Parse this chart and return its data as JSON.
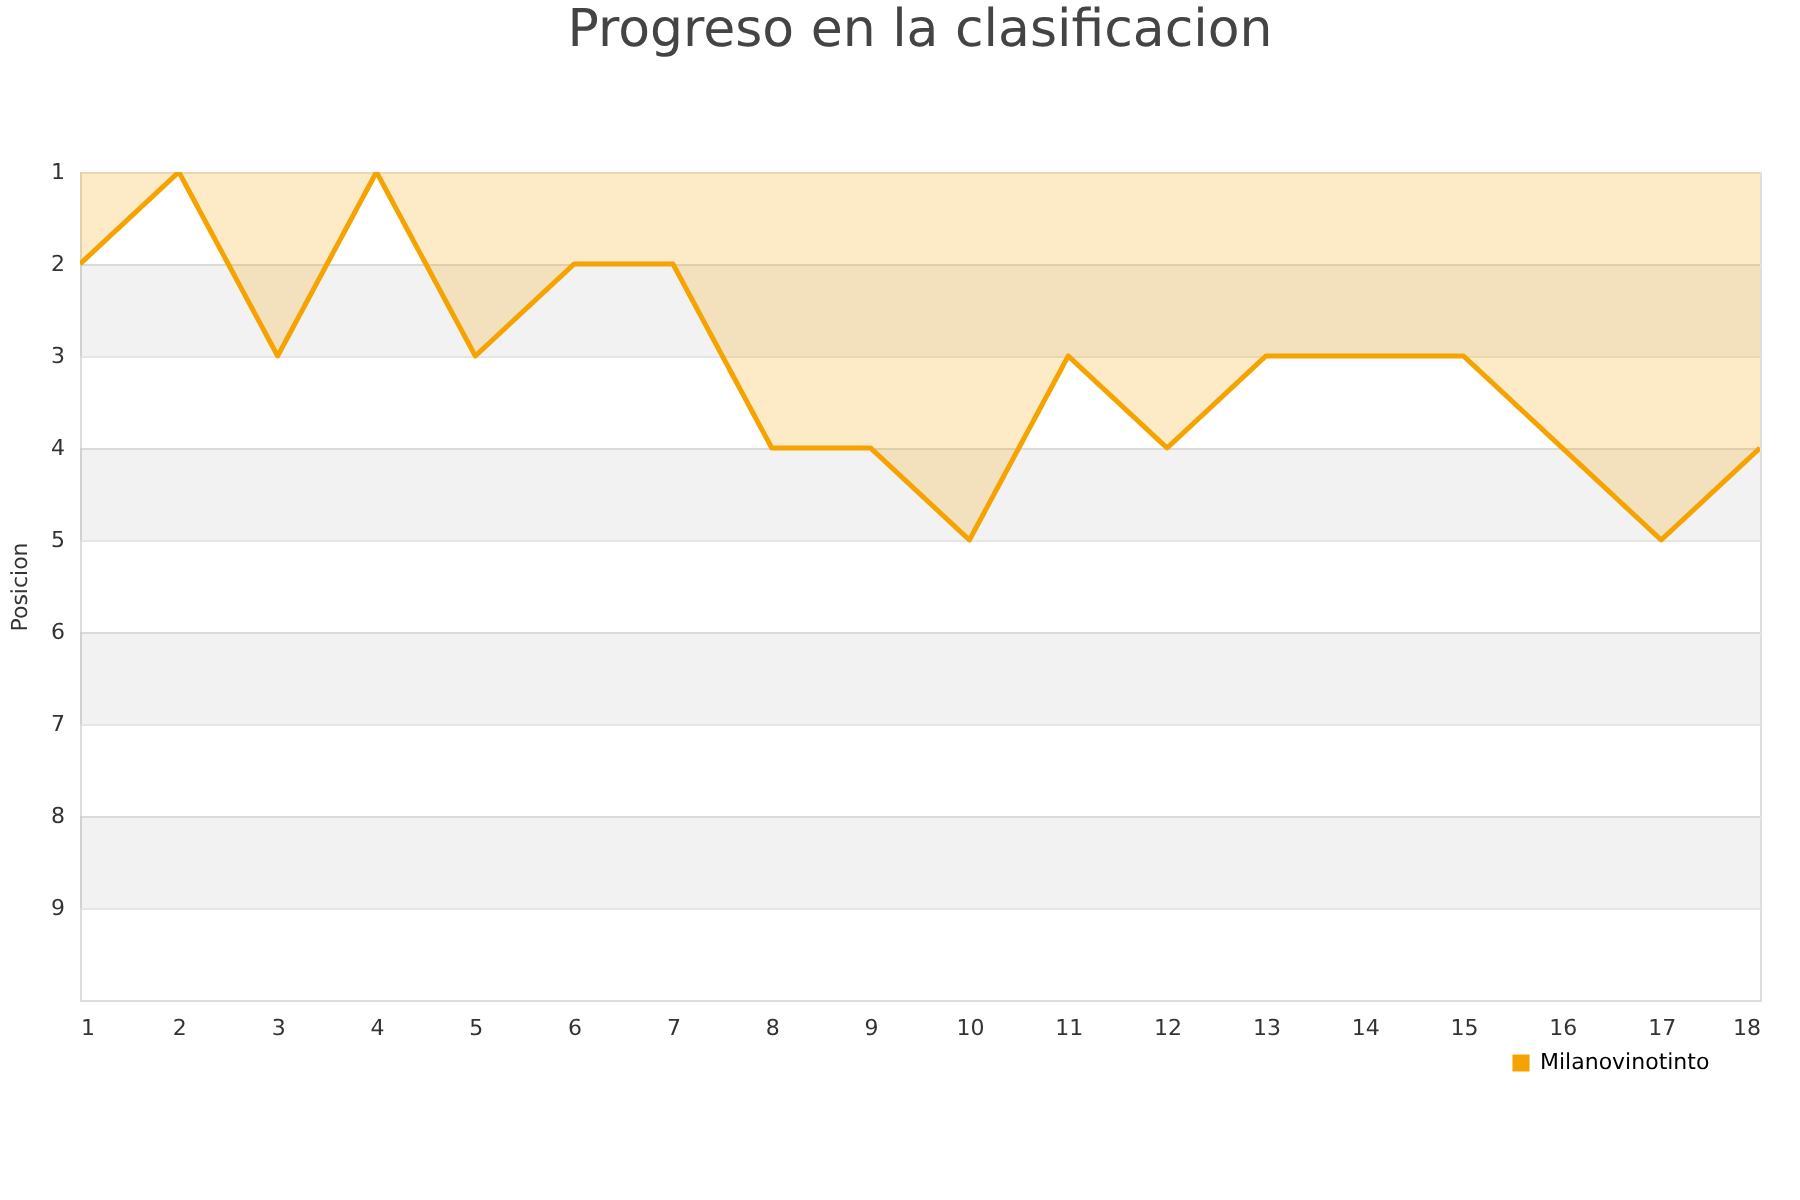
{
  "chart_data": {
    "type": "area",
    "title": "Progreso en la clasificacion",
    "ylabel": "Posicion",
    "x": [
      1,
      2,
      3,
      4,
      5,
      6,
      7,
      8,
      9,
      10,
      11,
      12,
      13,
      14,
      15,
      16,
      17,
      18
    ],
    "series": [
      {
        "name": "Milanovinotinto",
        "color": "#f5a300",
        "values": [
          2,
          1,
          3,
          1,
          3,
          2,
          2,
          4,
          4,
          5,
          3,
          4,
          3,
          3,
          3,
          4,
          5,
          4
        ]
      }
    ],
    "xlim": [
      1,
      18
    ],
    "xticks": [
      1,
      2,
      3,
      4,
      5,
      6,
      7,
      8,
      9,
      10,
      11,
      12,
      13,
      14,
      15,
      16,
      17,
      18
    ],
    "ylim": [
      10,
      1
    ],
    "yticks": [
      1,
      2,
      3,
      4,
      5,
      6,
      7,
      8,
      9
    ],
    "grid": "y",
    "legend": "bottom right"
  }
}
